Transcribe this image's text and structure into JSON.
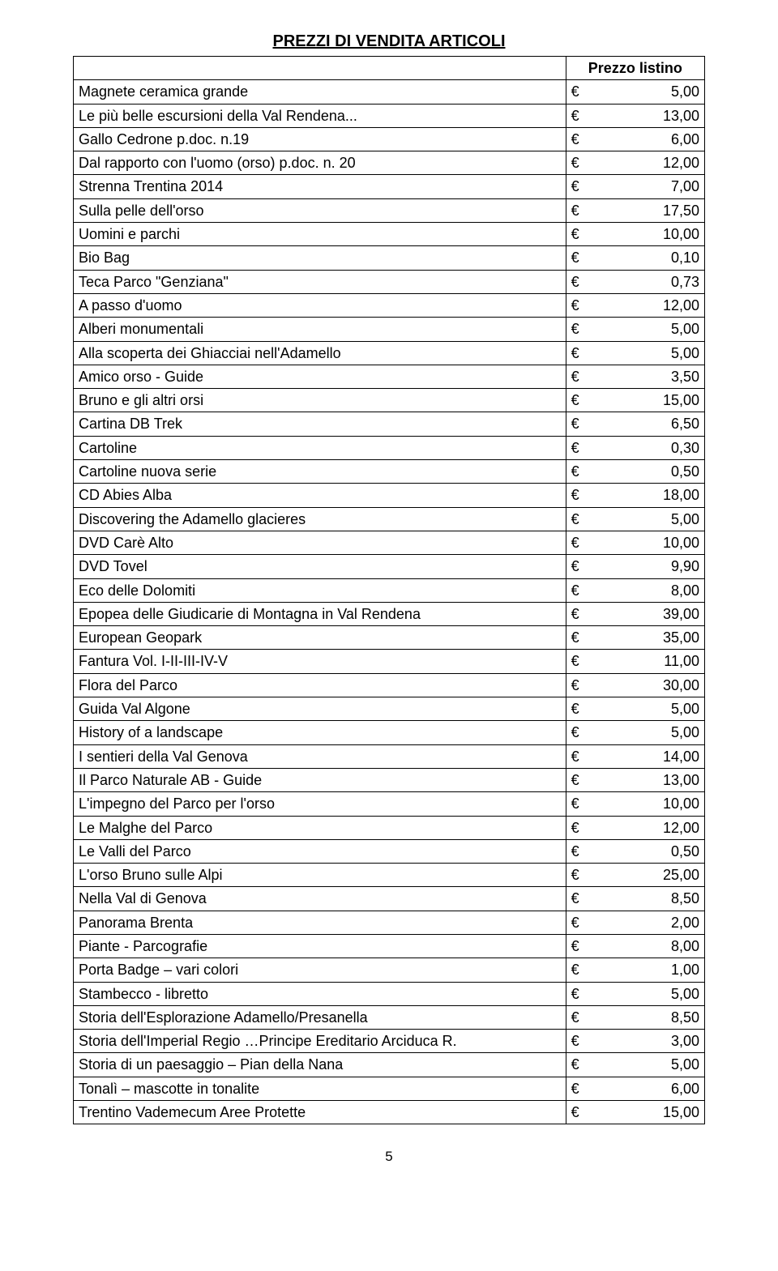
{
  "title": "PREZZI DI VENDITA ARTICOLI",
  "header_col2": "Prezzo listino",
  "currency": "€",
  "page_number": "5",
  "rows": [
    {
      "name": "Magnete ceramica grande",
      "price": "5,00"
    },
    {
      "name": "Le più belle escursioni della Val Rendena...",
      "price": "13,00"
    },
    {
      "name": "Gallo Cedrone p.doc. n.19",
      "price": "6,00"
    },
    {
      "name": "Dal rapporto con l'uomo (orso) p.doc. n. 20",
      "price": "12,00"
    },
    {
      "name": "Strenna Trentina 2014",
      "price": "7,00"
    },
    {
      "name": "Sulla pelle dell'orso",
      "price": "17,50"
    },
    {
      "name": "Uomini e parchi",
      "price": "10,00"
    },
    {
      "name": "Bio Bag",
      "price": "0,10"
    },
    {
      "name": "Teca Parco \"Genziana\"",
      "price": "0,73"
    },
    {
      "name": "A passo d'uomo",
      "price": "12,00"
    },
    {
      "name": "Alberi monumentali",
      "price": "5,00"
    },
    {
      "name": "Alla scoperta dei Ghiacciai nell'Adamello",
      "price": "5,00"
    },
    {
      "name": "Amico orso - Guide",
      "price": "3,50"
    },
    {
      "name": "Bruno e gli altri orsi",
      "price": "15,00"
    },
    {
      "name": "Cartina DB Trek",
      "price": "6,50"
    },
    {
      "name": "Cartoline",
      "price": "0,30"
    },
    {
      "name": "Cartoline nuova serie",
      "price": "0,50"
    },
    {
      "name": "CD Abies Alba",
      "price": "18,00"
    },
    {
      "name": "Discovering the Adamello glacieres",
      "price": "5,00"
    },
    {
      "name": "DVD Carè Alto",
      "price": "10,00"
    },
    {
      "name": "DVD Tovel",
      "price": "9,90"
    },
    {
      "name": "Eco delle Dolomiti",
      "price": "8,00"
    },
    {
      "name": "Epopea delle Giudicarie di Montagna in Val Rendena",
      "price": "39,00"
    },
    {
      "name": "European Geopark",
      "price": "35,00"
    },
    {
      "name": "Fantura Vol. I-II-III-IV-V",
      "price": "11,00"
    },
    {
      "name": "Flora del Parco",
      "price": "30,00"
    },
    {
      "name": "Guida Val Algone",
      "price": "5,00"
    },
    {
      "name": "History of a landscape",
      "price": "5,00"
    },
    {
      "name": "I sentieri della Val Genova",
      "price": "14,00"
    },
    {
      "name": "Il Parco Naturale AB - Guide",
      "price": "13,00"
    },
    {
      "name": "L'impegno del Parco per l'orso",
      "price": "10,00"
    },
    {
      "name": "Le Malghe del Parco",
      "price": "12,00"
    },
    {
      "name": "Le Valli del Parco",
      "price": "0,50"
    },
    {
      "name": "L'orso Bruno sulle Alpi",
      "price": "25,00"
    },
    {
      "name": "Nella Val di Genova",
      "price": "8,50"
    },
    {
      "name": "Panorama Brenta",
      "price": "2,00"
    },
    {
      "name": "Piante - Parcografie",
      "price": "8,00"
    },
    {
      "name": "Porta Badge – vari colori",
      "price": "1,00"
    },
    {
      "name": "Stambecco - libretto",
      "price": "5,00"
    },
    {
      "name": "Storia dell'Esplorazione Adamello/Presanella",
      "price": "8,50"
    },
    {
      "name": "Storia dell'Imperial Regio …Principe Ereditario Arciduca R.",
      "price": "3,00"
    },
    {
      "name": "Storia di un paesaggio – Pian della Nana",
      "price": "5,00"
    },
    {
      "name": "Tonalì – mascotte in tonalite",
      "price": "6,00"
    },
    {
      "name": "Trentino Vademecum Aree Protette",
      "price": "15,00"
    }
  ]
}
